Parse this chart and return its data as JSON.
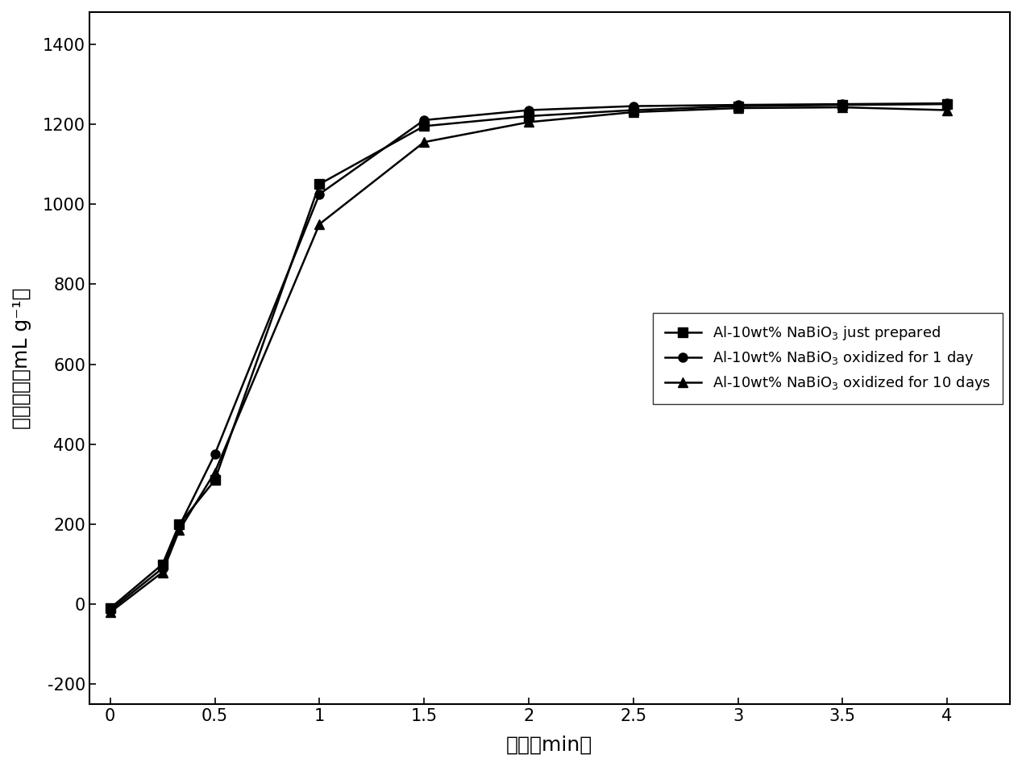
{
  "series": [
    {
      "label": "Al-10wt% NaBiO$_3$ just prepared",
      "marker": "s",
      "x": [
        0,
        0.25,
        0.33,
        0.5,
        1.0,
        1.5,
        2.0,
        2.5,
        3.0,
        3.5,
        4.0
      ],
      "y": [
        -10,
        100,
        200,
        310,
        1050,
        1195,
        1220,
        1235,
        1245,
        1248,
        1250
      ]
    },
    {
      "label": "Al-10wt% NaBiO$_3$ oxidized for 1 day",
      "marker": "o",
      "x": [
        0,
        0.25,
        0.33,
        0.5,
        1.0,
        1.5,
        2.0,
        2.5,
        3.0,
        3.5,
        4.0
      ],
      "y": [
        -15,
        90,
        195,
        375,
        1025,
        1210,
        1235,
        1245,
        1248,
        1250,
        1252
      ]
    },
    {
      "label": "Al-10wt% NaBiO$_3$ oxidized for 10 days",
      "marker": "^",
      "x": [
        0,
        0.25,
        0.33,
        0.5,
        1.0,
        1.5,
        2.0,
        2.5,
        3.0,
        3.5,
        4.0
      ],
      "y": [
        -20,
        80,
        185,
        330,
        950,
        1155,
        1205,
        1230,
        1240,
        1242,
        1235
      ]
    }
  ],
  "xlabel": "时间（min）",
  "ylabel": "氢气产量（mL g⁻¹）",
  "xlim": [
    -0.1,
    4.3
  ],
  "ylim": [
    -250,
    1480
  ],
  "xticks": [
    0,
    0.5,
    1.0,
    1.5,
    2.0,
    2.5,
    3.0,
    3.5,
    4.0
  ],
  "yticks": [
    -200,
    0,
    200,
    400,
    600,
    800,
    1000,
    1200,
    1400
  ],
  "line_color": "black",
  "line_width": 1.8,
  "marker_size": 8,
  "legend_loc": "center right",
  "font_size_label": 18,
  "font_size_tick": 15,
  "font_size_legend": 13,
  "background_color": "#ffffff"
}
